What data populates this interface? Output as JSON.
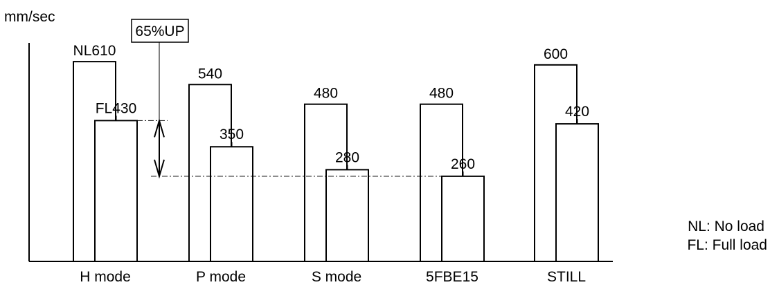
{
  "chart_data": {
    "type": "bar",
    "ylabel": "mm/sec",
    "categories": [
      "H mode",
      "P mode",
      "S mode",
      "5FBE15",
      "STILL"
    ],
    "series": [
      {
        "name": "NL",
        "values": [
          610,
          540,
          480,
          480,
          600
        ]
      },
      {
        "name": "FL",
        "values": [
          430,
          350,
          280,
          260,
          420
        ]
      }
    ],
    "data_labels": {
      "NL": [
        "NL610",
        "540",
        "480",
        "480",
        "600"
      ],
      "FL": [
        "FL430",
        "350",
        "280",
        "260",
        "420"
      ]
    },
    "annotation": {
      "text": "65%UP",
      "from_value": 430,
      "to_value": 260
    },
    "legend": {
      "position": "bottom-right",
      "lines": [
        "NL: No load",
        "FL: Full load"
      ]
    },
    "ylim": [
      0,
      810
    ],
    "grid": false,
    "colors": {
      "stroke": "#000000",
      "background": "#ffffff"
    }
  }
}
